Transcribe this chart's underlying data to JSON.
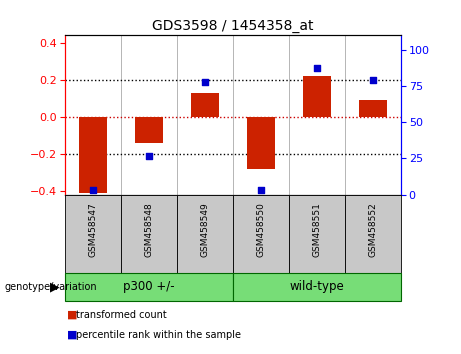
{
  "title": "GDS3598 / 1454358_at",
  "samples": [
    "GSM458547",
    "GSM458548",
    "GSM458549",
    "GSM458550",
    "GSM458551",
    "GSM458552"
  ],
  "red_values": [
    -0.41,
    -0.14,
    0.13,
    -0.28,
    0.22,
    0.09
  ],
  "blue_values_scaled": [
    -0.395,
    -0.21,
    0.19,
    -0.395,
    0.265,
    0.2
  ],
  "group1_label": "p300 +/-",
  "group2_label": "wild-type",
  "group_label": "genotype/variation",
  "ylim_left": [
    -0.42,
    0.44
  ],
  "ylim_right": [
    0,
    110
  ],
  "yticks_left": [
    -0.4,
    -0.2,
    0.0,
    0.2,
    0.4
  ],
  "yticks_right": [
    0,
    25,
    50,
    75,
    100
  ],
  "bar_color": "#CC2200",
  "dot_color": "#0000CC",
  "hline_red_color": "#CC0000",
  "dotted_color": "#000000",
  "bg_color": "#FFFFFF",
  "plot_bg": "#FFFFFF",
  "sample_box_color": "#C8C8C8",
  "group_bg_color": "#77DD77",
  "legend_red": "transformed count",
  "legend_blue": "percentile rank within the sample",
  "bar_width": 0.5
}
